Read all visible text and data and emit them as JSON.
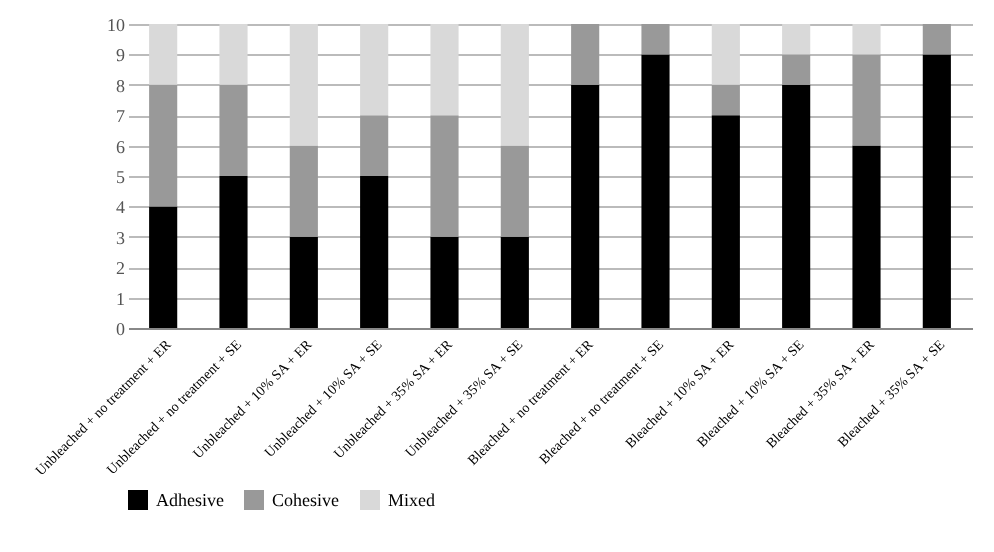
{
  "chart_data": {
    "type": "bar",
    "stacked": true,
    "categories": [
      "Unbleached + no treatment + ER",
      "Unbleached + no treatment + SE",
      "Unbleached + 10% SA + ER",
      "Unbleached + 10% SA + SE",
      "Unbleached + 35% SA + ER",
      "Unbleached + 35% SA + SE",
      "Bleached + no treatment + ER",
      "Bleached + no treatment + SE",
      "Bleached + 10% SA + ER",
      "Bleached + 10% SA + SE",
      "Bleached + 35% SA + ER",
      "Bleached + 35% SA + SE"
    ],
    "series": [
      {
        "name": "Adhesive",
        "color": "#000000",
        "values": [
          4,
          5,
          3,
          5,
          3,
          3,
          8,
          9,
          7,
          8,
          6,
          9
        ]
      },
      {
        "name": "Cohesive",
        "color": "#999999",
        "values": [
          4,
          3,
          3,
          2,
          4,
          3,
          2,
          1,
          1,
          1,
          3,
          1
        ]
      },
      {
        "name": "Mixed",
        "color": "#d9d9d9",
        "values": [
          2,
          2,
          4,
          3,
          3,
          4,
          0,
          0,
          2,
          1,
          1,
          0
        ]
      }
    ],
    "ylim": [
      0,
      10
    ],
    "yticks": [
      0,
      1,
      2,
      3,
      4,
      5,
      6,
      7,
      8,
      9,
      10
    ],
    "grid": "y",
    "legend": "bottom"
  }
}
